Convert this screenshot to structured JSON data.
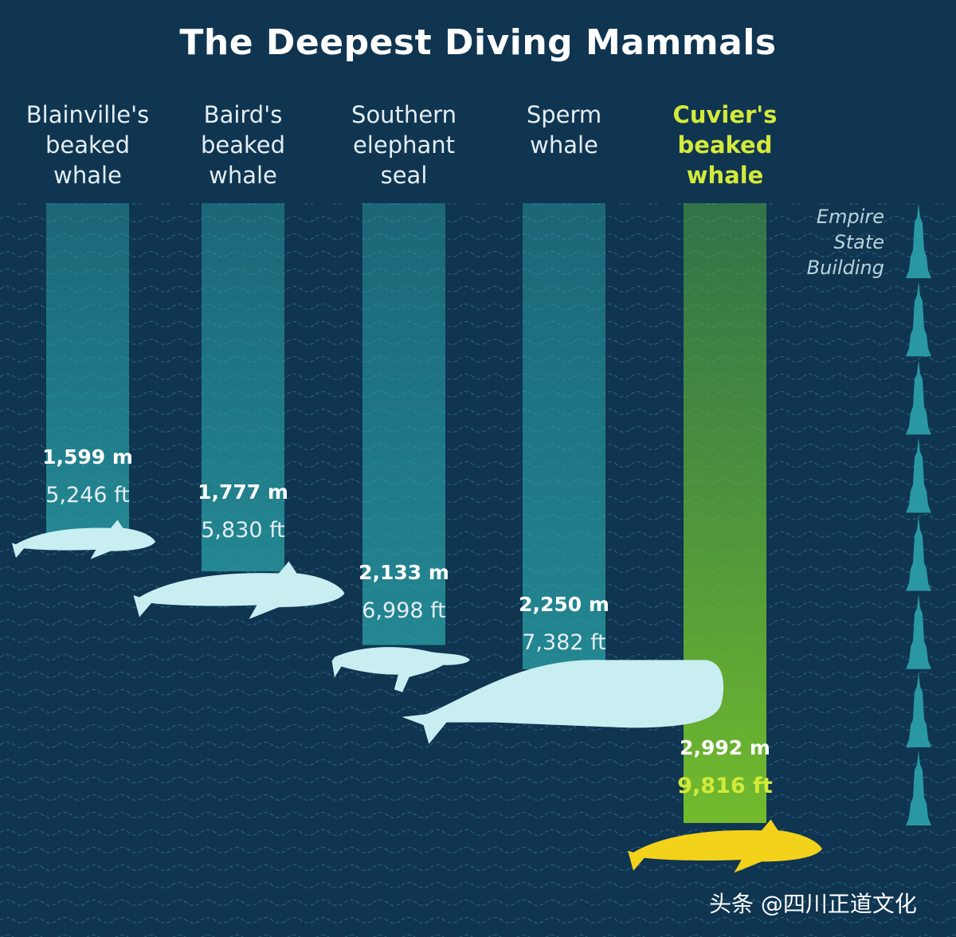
{
  "chart_data": {
    "type": "bar",
    "title": "The Deepest Diving Mammals",
    "categories": [
      "Blainville's beaked whale",
      "Baird's beaked whale",
      "Southern elephant seal",
      "Sperm whale",
      "Cuvier's beaked whale"
    ],
    "species_labels": [
      [
        "Blainville's",
        "beaked",
        "whale"
      ],
      [
        "Baird's",
        "beaked",
        "whale"
      ],
      [
        "Southern",
        "elephant",
        "seal"
      ],
      [
        "Sperm",
        "whale"
      ],
      [
        "Cuvier's",
        "beaked",
        "whale"
      ]
    ],
    "series": [
      {
        "name": "m",
        "values": [
          1599,
          1777,
          2133,
          2250,
          2992
        ]
      },
      {
        "name": "ft",
        "values": [
          5246,
          5830,
          6998,
          7382,
          9816
        ]
      }
    ],
    "depth_labels_m": [
      "1,599 m",
      "1,777 m",
      "2,133 m",
      "2,250 m",
      "2,992 m"
    ],
    "depth_labels_ft": [
      "5,246 ft",
      "5,830 ft",
      "6,998 ft",
      "7,382 ft",
      "9,816 ft"
    ],
    "highlight_index": 4,
    "y_orientation": "depth increases downward",
    "reference": {
      "label": [
        "Empire",
        "State",
        "Building"
      ],
      "stack_count": 8
    },
    "colors": {
      "background": "#0f3551",
      "bar": "#2aa2a7",
      "bar_highlight": "#6cb82c",
      "animal": "#c8eef2",
      "animal_highlight": "#f3d21b",
      "label_highlight": "#d4ea3a",
      "esb": "#2a98a3"
    }
  },
  "watermark": "头条 @四川正道文化"
}
